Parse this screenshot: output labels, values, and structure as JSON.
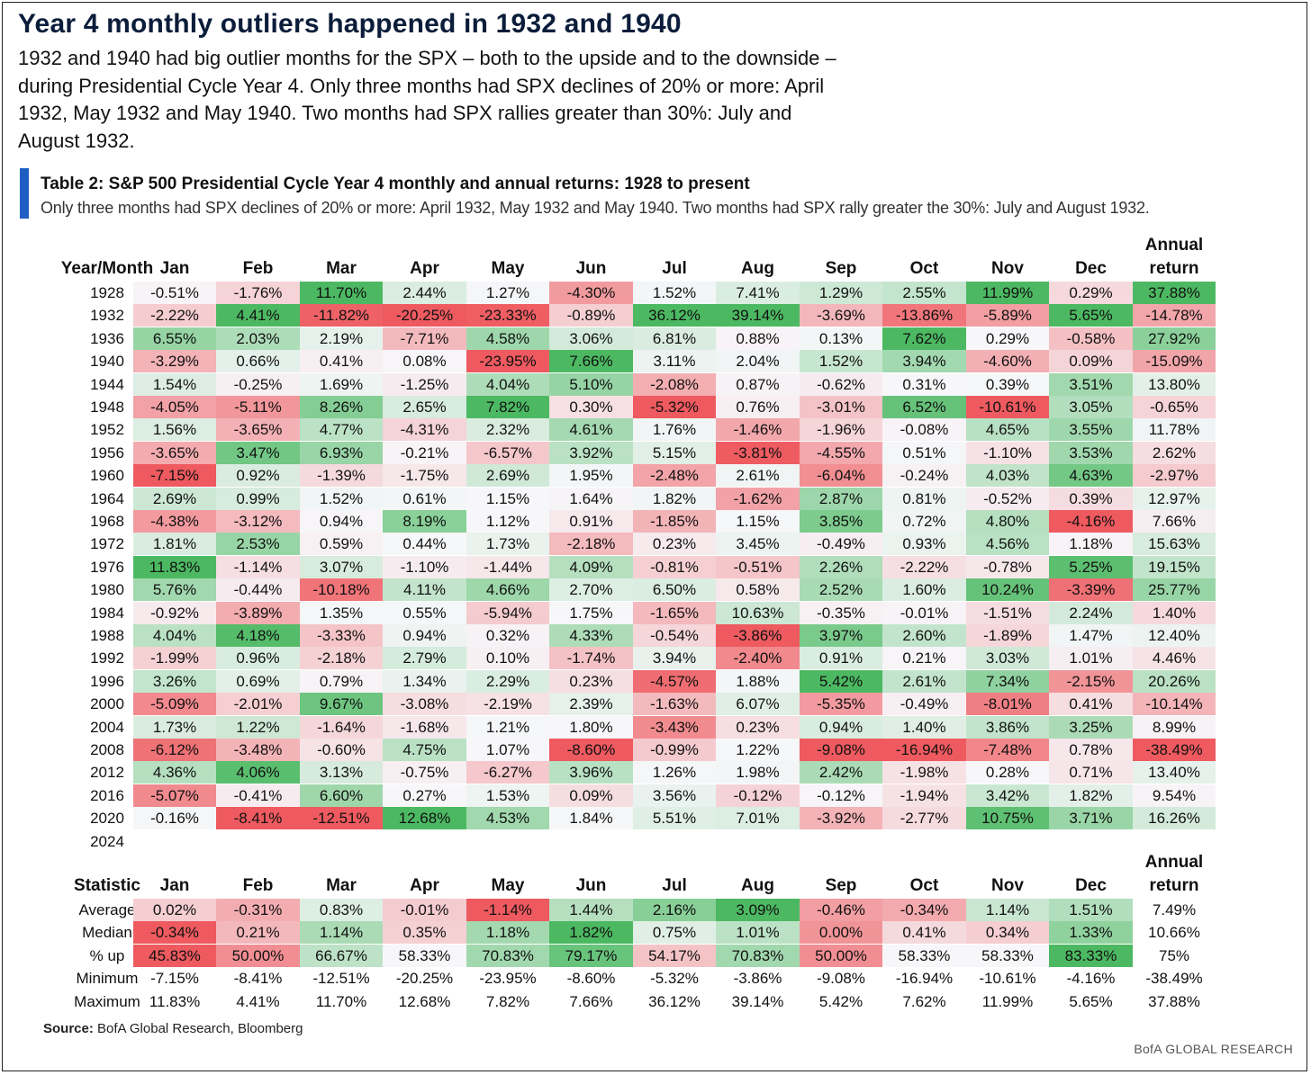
{
  "headline": "Year 4 monthly outliers happened in 1932 and 1940",
  "intro": "1932 and 1940 had big outlier months for the SPX – both to the upside and to the downside – during Presidential Cycle Year 4. Only three months had SPX declines of 20% or more: April 1932, May 1932 and May 1940. Two months had SPX rallies greater than 30%: July and August 1932.",
  "table_title": "Table 2: S&P 500 Presidential Cycle Year 4 monthly and annual returns: 1928 to present",
  "table_subtitle": "Only three months had SPX declines of 20% or more: April 1932, May 1932 and May 1940. Two months had SPX rally greater the 30%: July and August 1932.",
  "columns": [
    "Jan",
    "Feb",
    "Mar",
    "Apr",
    "May",
    "Jun",
    "Jul",
    "Aug",
    "Sep",
    "Oct",
    "Nov",
    "Dec"
  ],
  "annual_header_line1": "Annual",
  "annual_header_line2": "return",
  "returns_header": "Year/Month",
  "returns": [
    {
      "label": "1928",
      "values": [
        "-0.51%",
        "-1.76%",
        "11.70%",
        "2.44%",
        "1.27%",
        "-4.30%",
        "1.52%",
        "7.41%",
        "1.29%",
        "2.55%",
        "11.99%",
        "0.29%",
        "37.88%"
      ]
    },
    {
      "label": "1932",
      "values": [
        "-2.22%",
        "4.41%",
        "-11.82%",
        "-20.25%",
        "-23.33%",
        "-0.89%",
        "36.12%",
        "39.14%",
        "-3.69%",
        "-13.86%",
        "-5.89%",
        "5.65%",
        "-14.78%"
      ]
    },
    {
      "label": "1936",
      "values": [
        "6.55%",
        "2.03%",
        "2.19%",
        "-7.71%",
        "4.58%",
        "3.06%",
        "6.81%",
        "0.88%",
        "0.13%",
        "7.62%",
        "0.29%",
        "-0.58%",
        "27.92%"
      ]
    },
    {
      "label": "1940",
      "values": [
        "-3.29%",
        "0.66%",
        "0.41%",
        "0.08%",
        "-23.95%",
        "7.66%",
        "3.11%",
        "2.04%",
        "1.52%",
        "3.94%",
        "-4.60%",
        "0.09%",
        "-15.09%"
      ]
    },
    {
      "label": "1944",
      "values": [
        "1.54%",
        "-0.25%",
        "1.69%",
        "-1.25%",
        "4.04%",
        "5.10%",
        "-2.08%",
        "0.87%",
        "-0.62%",
        "0.31%",
        "0.39%",
        "3.51%",
        "13.80%"
      ]
    },
    {
      "label": "1948",
      "values": [
        "-4.05%",
        "-5.11%",
        "8.26%",
        "2.65%",
        "7.82%",
        "0.30%",
        "-5.32%",
        "0.76%",
        "-3.01%",
        "6.52%",
        "-10.61%",
        "3.05%",
        "-0.65%"
      ]
    },
    {
      "label": "1952",
      "values": [
        "1.56%",
        "-3.65%",
        "4.77%",
        "-4.31%",
        "2.32%",
        "4.61%",
        "1.76%",
        "-1.46%",
        "-1.96%",
        "-0.08%",
        "4.65%",
        "3.55%",
        "11.78%"
      ]
    },
    {
      "label": "1956",
      "values": [
        "-3.65%",
        "3.47%",
        "6.93%",
        "-0.21%",
        "-6.57%",
        "3.92%",
        "5.15%",
        "-3.81%",
        "-4.55%",
        "0.51%",
        "-1.10%",
        "3.53%",
        "2.62%"
      ]
    },
    {
      "label": "1960",
      "values": [
        "-7.15%",
        "0.92%",
        "-1.39%",
        "-1.75%",
        "2.69%",
        "1.95%",
        "-2.48%",
        "2.61%",
        "-6.04%",
        "-0.24%",
        "4.03%",
        "4.63%",
        "-2.97%"
      ]
    },
    {
      "label": "1964",
      "values": [
        "2.69%",
        "0.99%",
        "1.52%",
        "0.61%",
        "1.15%",
        "1.64%",
        "1.82%",
        "-1.62%",
        "2.87%",
        "0.81%",
        "-0.52%",
        "0.39%",
        "12.97%"
      ]
    },
    {
      "label": "1968",
      "values": [
        "-4.38%",
        "-3.12%",
        "0.94%",
        "8.19%",
        "1.12%",
        "0.91%",
        "-1.85%",
        "1.15%",
        "3.85%",
        "0.72%",
        "4.80%",
        "-4.16%",
        "7.66%"
      ]
    },
    {
      "label": "1972",
      "values": [
        "1.81%",
        "2.53%",
        "0.59%",
        "0.44%",
        "1.73%",
        "-2.18%",
        "0.23%",
        "3.45%",
        "-0.49%",
        "0.93%",
        "4.56%",
        "1.18%",
        "15.63%"
      ]
    },
    {
      "label": "1976",
      "values": [
        "11.83%",
        "-1.14%",
        "3.07%",
        "-1.10%",
        "-1.44%",
        "4.09%",
        "-0.81%",
        "-0.51%",
        "2.26%",
        "-2.22%",
        "-0.78%",
        "5.25%",
        "19.15%"
      ]
    },
    {
      "label": "1980",
      "values": [
        "5.76%",
        "-0.44%",
        "-10.18%",
        "4.11%",
        "4.66%",
        "2.70%",
        "6.50%",
        "0.58%",
        "2.52%",
        "1.60%",
        "10.24%",
        "-3.39%",
        "25.77%"
      ]
    },
    {
      "label": "1984",
      "values": [
        "-0.92%",
        "-3.89%",
        "1.35%",
        "0.55%",
        "-5.94%",
        "1.75%",
        "-1.65%",
        "10.63%",
        "-0.35%",
        "-0.01%",
        "-1.51%",
        "2.24%",
        "1.40%"
      ]
    },
    {
      "label": "1988",
      "values": [
        "4.04%",
        "4.18%",
        "-3.33%",
        "0.94%",
        "0.32%",
        "4.33%",
        "-0.54%",
        "-3.86%",
        "3.97%",
        "2.60%",
        "-1.89%",
        "1.47%",
        "12.40%"
      ]
    },
    {
      "label": "1992",
      "values": [
        "-1.99%",
        "0.96%",
        "-2.18%",
        "2.79%",
        "0.10%",
        "-1.74%",
        "3.94%",
        "-2.40%",
        "0.91%",
        "0.21%",
        "3.03%",
        "1.01%",
        "4.46%"
      ]
    },
    {
      "label": "1996",
      "values": [
        "3.26%",
        "0.69%",
        "0.79%",
        "1.34%",
        "2.29%",
        "0.23%",
        "-4.57%",
        "1.88%",
        "5.42%",
        "2.61%",
        "7.34%",
        "-2.15%",
        "20.26%"
      ]
    },
    {
      "label": "2000",
      "values": [
        "-5.09%",
        "-2.01%",
        "9.67%",
        "-3.08%",
        "-2.19%",
        "2.39%",
        "-1.63%",
        "6.07%",
        "-5.35%",
        "-0.49%",
        "-8.01%",
        "0.41%",
        "-10.14%"
      ]
    },
    {
      "label": "2004",
      "values": [
        "1.73%",
        "1.22%",
        "-1.64%",
        "-1.68%",
        "1.21%",
        "1.80%",
        "-3.43%",
        "0.23%",
        "0.94%",
        "1.40%",
        "3.86%",
        "3.25%",
        "8.99%"
      ]
    },
    {
      "label": "2008",
      "values": [
        "-6.12%",
        "-3.48%",
        "-0.60%",
        "4.75%",
        "1.07%",
        "-8.60%",
        "-0.99%",
        "1.22%",
        "-9.08%",
        "-16.94%",
        "-7.48%",
        "0.78%",
        "-38.49%"
      ]
    },
    {
      "label": "2012",
      "values": [
        "4.36%",
        "4.06%",
        "3.13%",
        "-0.75%",
        "-6.27%",
        "3.96%",
        "1.26%",
        "1.98%",
        "2.42%",
        "-1.98%",
        "0.28%",
        "0.71%",
        "13.40%"
      ]
    },
    {
      "label": "2016",
      "values": [
        "-5.07%",
        "-0.41%",
        "6.60%",
        "0.27%",
        "1.53%",
        "0.09%",
        "3.56%",
        "-0.12%",
        "-0.12%",
        "-1.94%",
        "3.42%",
        "1.82%",
        "9.54%"
      ]
    },
    {
      "label": "2020",
      "values": [
        "-0.16%",
        "-8.41%",
        "-12.51%",
        "12.68%",
        "4.53%",
        "1.84%",
        "5.51%",
        "7.01%",
        "-3.92%",
        "-2.77%",
        "10.75%",
        "3.71%",
        "16.26%"
      ]
    },
    {
      "label": "2024",
      "values": []
    }
  ],
  "stats_header": "Statistic",
  "stats": [
    {
      "label": "Average",
      "values": [
        "0.02%",
        "-0.31%",
        "0.83%",
        "-0.01%",
        "-1.14%",
        "1.44%",
        "2.16%",
        "3.09%",
        "-0.46%",
        "-0.34%",
        "1.14%",
        "1.51%",
        "7.49%"
      ]
    },
    {
      "label": "Median",
      "values": [
        "-0.34%",
        "0.21%",
        "1.14%",
        "0.35%",
        "1.18%",
        "1.82%",
        "0.75%",
        "1.01%",
        "0.00%",
        "0.41%",
        "0.34%",
        "1.33%",
        "10.66%"
      ]
    },
    {
      "label": "% up",
      "values": [
        "45.83%",
        "50.00%",
        "66.67%",
        "58.33%",
        "70.83%",
        "79.17%",
        "54.17%",
        "70.83%",
        "50.00%",
        "58.33%",
        "58.33%",
        "83.33%",
        "75%"
      ]
    },
    {
      "label": "Minimum",
      "values": [
        "-7.15%",
        "-8.41%",
        "-12.51%",
        "-20.25%",
        "-23.95%",
        "-8.60%",
        "-5.32%",
        "-3.86%",
        "-9.08%",
        "-16.94%",
        "-10.61%",
        "-4.16%",
        "-38.49%"
      ]
    },
    {
      "label": "Maximum",
      "values": [
        "11.83%",
        "4.41%",
        "11.70%",
        "12.68%",
        "7.82%",
        "7.66%",
        "36.12%",
        "39.14%",
        "5.42%",
        "7.62%",
        "11.99%",
        "5.65%",
        "37.88%"
      ]
    }
  ],
  "stats_colored_rows": 3,
  "colors": {
    "neutral": "#f7f7fa",
    "positive_max": "#4cb962",
    "negative_max": "#ee5a5f",
    "accent_bar": "#1f5fc4",
    "headline": "#0b1d3a"
  },
  "source_label": "Source:",
  "source_text": "BofA Global Research, Bloomberg",
  "brand": "BofA GLOBAL RESEARCH"
}
